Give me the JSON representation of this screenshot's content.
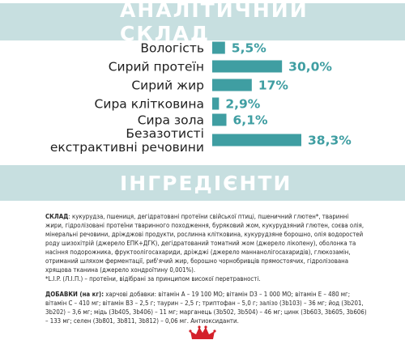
{
  "analysis_heading": "АНАЛІТИЧНИЙ СКЛАД",
  "ingredients_heading": "ІНГРЕДІЄНТИ",
  "colors": {
    "banner": "#c7dfe0",
    "bar": "#3f9ea2",
    "value": "#3f9ea2",
    "logo_red": "#d4202a"
  },
  "chart_data": {
    "type": "bar",
    "orientation": "horizontal",
    "title": "",
    "xlabel": "",
    "ylabel": "",
    "categories": [
      [
        "Вологість"
      ],
      [
        "Сирий протеїн"
      ],
      [
        "Сирий жир"
      ],
      [
        "Сира клітковина"
      ],
      [
        "Сира зола"
      ],
      [
        "Безазотисті",
        "екстрактивні речовини"
      ]
    ],
    "values": [
      5.5,
      30.0,
      17,
      2.9,
      6.1,
      38.3
    ],
    "value_labels": [
      "5,5%",
      "30,0%",
      "17%",
      "2,9%",
      "6,1%",
      "38,3%"
    ],
    "xlim": [
      0,
      38.3
    ],
    "grid": false,
    "legend": "none"
  },
  "ingredients": {
    "composition_label": "СКЛАД",
    "composition_text": ": кукурудза, пшениця, дегідратовані протеїни свійської птиці, пшеничний глютен*, тваринні жири, гідролізовані протеїни тваринного походження, буряковий жом, кукурудзяний глютен, соєва олія, мінеральні речовини, дріжджові продукти, рослинна клітковина, кукурудзяне борошно, олія водоростей роду шизохітрій (джерело ЕПК+ДГК), дегідратований томатний жом (джерело лікопену), оболонка та насіння подорожника, фруктоолігосахариди, дріжджі (джерело маннанолігосахаридів), глюкозамін, отриманий шляхом ферментації, риб'ячий жир, борошно чорнобривців прямостоячих, гідролізована хрящова тканина (джерело хондроїтину 0,001%).",
    "footnote": "*L.I.P. (Л.І.П.) – протеїни, відібрані за принципом високої перетравності.",
    "additives_label": "ДОБАВКИ (на кг):",
    "additives_text": " харчові добавки: вітамін А – 19 100 МО; вітамін D3 – 1 000 МО; вітамін Е – 480 мг; вітамін С – 410 мг; вітамін В3 – 2,5 г; таурин – 2,5 г; триптофан – 5,0 г; залізо (3b103) – 36 мг; йод (3b201, 3b202) – 3,6 мг; мідь (3b405, 3b406) – 11 мг; марганець (3b502, 3b504) – 46 мг; цинк (3b603, 3b605, 3b606) – 133 мг; селен (3b801, 3b811, 3b812) – 0,06 мг. Антиоксиданти."
  },
  "logo": {
    "name": "royal-canin-crown-logo"
  }
}
